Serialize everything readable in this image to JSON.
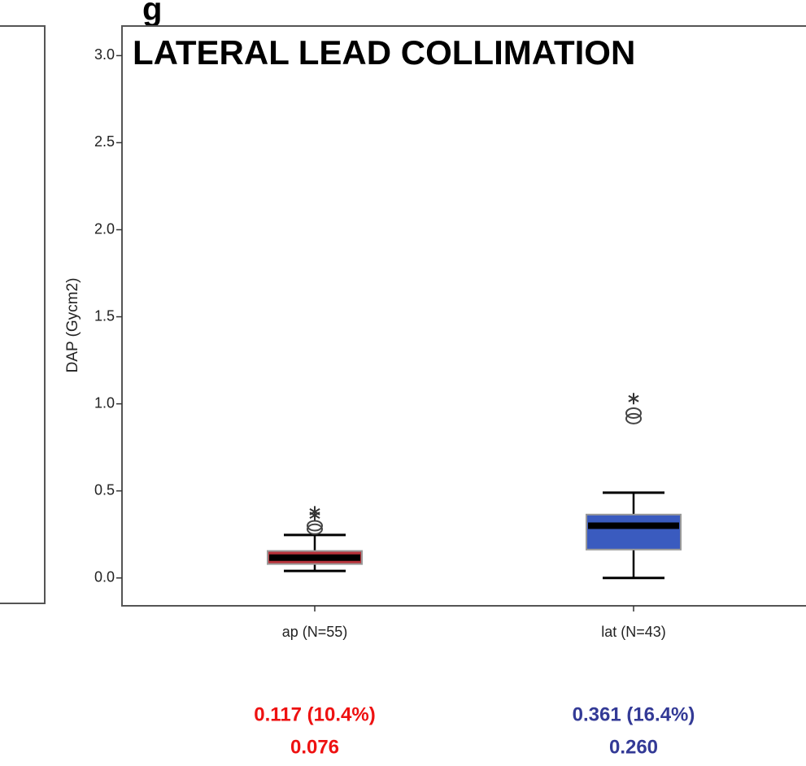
{
  "chart_data": {
    "type": "box",
    "title_fragment": "g",
    "title": "LATERAL LEAD COLLIMATION",
    "y_label": "DAP (Gycm2)",
    "ylim": [
      -0.16,
      3.17
    ],
    "yticks": [
      {
        "value": 0,
        "label": "0.0"
      },
      0.5,
      {
        "value": 1,
        "label": "1.0"
      },
      1.5,
      {
        "value": 2,
        "label": "2.0"
      },
      2.5,
      {
        "value": 3,
        "label": "3.0"
      }
    ],
    "categories": [
      "ap (N=55)",
      "lat (N=43)"
    ],
    "series": [
      {
        "color": "#b8323a",
        "whisker_low": 0.04,
        "q1": 0.08,
        "median": 0.117,
        "q3": 0.155,
        "whisker_high": 0.247,
        "outliers": [
          0.28,
          0.3
        ],
        "extremes": [
          0.36,
          0.38
        ]
      },
      {
        "color": "#3a5bbf",
        "whisker_low": 0.0,
        "q1": 0.163,
        "median": 0.3,
        "q3": 0.364,
        "whisker_high": 0.49,
        "outliers": [
          0.915,
          0.947
        ],
        "extremes": [
          1.03
        ]
      }
    ],
    "annotations": [
      {
        "lines": [
          "0.117 (10.4%)",
          "0.076"
        ],
        "color": "#ee1111"
      },
      {
        "lines": [
          "0.361 (16.4%)",
          "0.260"
        ],
        "color": "#333a96"
      }
    ]
  }
}
